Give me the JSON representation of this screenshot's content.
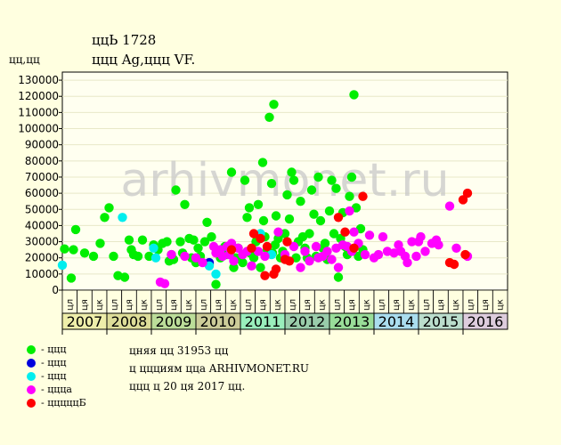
{
  "header": {
    "title_line1": "ццЬ 1728",
    "title_line2": "ццц Ag,ццц VF.",
    "ylabel": "цц,цц"
  },
  "watermark": "arhivmonet.ru",
  "notes": {
    "line1": "цняя цц 31953 цц",
    "line2": "ц ццциям ццa ARHIVMONET.RU",
    "line3": "ццц ц 20 ця 2017 цц."
  },
  "chart_data": {
    "type": "scatter",
    "ylim": [
      0,
      135000
    ],
    "yticks": [
      0,
      10000,
      20000,
      30000,
      40000,
      50000,
      60000,
      70000,
      80000,
      90000,
      100000,
      110000,
      120000,
      130000
    ],
    "quarter_labels": [
      "цл",
      "ця",
      "цк"
    ],
    "years": [
      {
        "label": "2007",
        "color": "#eeeeaa"
      },
      {
        "label": "2008",
        "color": "#dddd99"
      },
      {
        "label": "2009",
        "color": "#bbdd99"
      },
      {
        "label": "2010",
        "color": "#cccc99"
      },
      {
        "label": "2011",
        "color": "#99eebb"
      },
      {
        "label": "2012",
        "color": "#99ccaa"
      },
      {
        "label": "2013",
        "color": "#99dd99"
      },
      {
        "label": "2014",
        "color": "#aaddee"
      },
      {
        "label": "2015",
        "color": "#bbddcc"
      },
      {
        "label": "2016",
        "color": "#ddccdd"
      }
    ],
    "series": [
      {
        "name": "- ццц",
        "color": "#00ee00",
        "points": [
          [
            2007.05,
            25500
          ],
          [
            2007.2,
            7500
          ],
          [
            2007.3,
            37500
          ],
          [
            2007.25,
            25000
          ],
          [
            2007.5,
            23000
          ],
          [
            2007.7,
            21000
          ],
          [
            2007.85,
            29000
          ],
          [
            2007.95,
            45000
          ],
          [
            2008.05,
            51000
          ],
          [
            2008.15,
            21000
          ],
          [
            2008.25,
            9000
          ],
          [
            2008.4,
            8000
          ],
          [
            2008.5,
            31000
          ],
          [
            2008.55,
            25000
          ],
          [
            2008.6,
            22000
          ],
          [
            2008.7,
            21000
          ],
          [
            2008.8,
            31000
          ],
          [
            2008.95,
            21000
          ],
          [
            2009.05,
            28000
          ],
          [
            2009.15,
            25000
          ],
          [
            2009.25,
            29000
          ],
          [
            2009.35,
            30000
          ],
          [
            2009.4,
            18000
          ],
          [
            2009.45,
            22000
          ],
          [
            2009.5,
            19000
          ],
          [
            2009.55,
            62000
          ],
          [
            2009.65,
            30000
          ],
          [
            2009.7,
            23000
          ],
          [
            2009.75,
            53000
          ],
          [
            2009.85,
            32000
          ],
          [
            2009.9,
            20000
          ],
          [
            2009.95,
            31000
          ],
          [
            2010.0,
            17000
          ],
          [
            2010.05,
            26000
          ],
          [
            2010.1,
            21000
          ],
          [
            2010.2,
            30000
          ],
          [
            2010.25,
            42000
          ],
          [
            2010.3,
            16000
          ],
          [
            2010.35,
            33000
          ],
          [
            2010.45,
            3500
          ],
          [
            2010.55,
            20000
          ],
          [
            2010.65,
            27000
          ],
          [
            2010.7,
            22000
          ],
          [
            2010.8,
            73000
          ],
          [
            2010.85,
            14000
          ],
          [
            2010.9,
            20000
          ],
          [
            2010.95,
            26000
          ],
          [
            2011.0,
            19000
          ],
          [
            2011.05,
            17000
          ],
          [
            2011.1,
            68000
          ],
          [
            2011.15,
            45000
          ],
          [
            2011.2,
            51000
          ],
          [
            2011.22,
            23000
          ],
          [
            2011.3,
            20000
          ],
          [
            2011.35,
            30000
          ],
          [
            2011.4,
            53000
          ],
          [
            2011.45,
            14000
          ],
          [
            2011.5,
            79000
          ],
          [
            2011.52,
            43000
          ],
          [
            2011.55,
            33000
          ],
          [
            2011.6,
            25000
          ],
          [
            2011.65,
            107000
          ],
          [
            2011.7,
            66000
          ],
          [
            2011.72,
            23000
          ],
          [
            2011.75,
            115000
          ],
          [
            2011.78,
            28000
          ],
          [
            2011.8,
            46000
          ],
          [
            2011.85,
            32000
          ],
          [
            2011.9,
            20000
          ],
          [
            2011.95,
            24000
          ],
          [
            2012.0,
            35000
          ],
          [
            2012.05,
            59000
          ],
          [
            2012.1,
            44000
          ],
          [
            2012.15,
            73000
          ],
          [
            2012.2,
            68000
          ],
          [
            2012.25,
            20000
          ],
          [
            2012.3,
            30000
          ],
          [
            2012.35,
            55000
          ],
          [
            2012.4,
            33000
          ],
          [
            2012.45,
            26000
          ],
          [
            2012.5,
            20000
          ],
          [
            2012.55,
            35000
          ],
          [
            2012.6,
            62000
          ],
          [
            2012.65,
            47000
          ],
          [
            2012.7,
            21000
          ],
          [
            2012.75,
            70000
          ],
          [
            2012.8,
            43000
          ],
          [
            2012.85,
            26000
          ],
          [
            2012.9,
            29000
          ],
          [
            2012.95,
            19000
          ],
          [
            2013.0,
            49000
          ],
          [
            2013.05,
            68000
          ],
          [
            2013.1,
            35000
          ],
          [
            2013.15,
            63000
          ],
          [
            2013.2,
            8000
          ],
          [
            2013.25,
            32000
          ],
          [
            2013.3,
            48000
          ],
          [
            2013.35,
            27000
          ],
          [
            2013.4,
            22000
          ],
          [
            2013.45,
            58000
          ],
          [
            2013.5,
            70000
          ],
          [
            2013.55,
            121000
          ],
          [
            2013.6,
            51000
          ],
          [
            2013.65,
            21000
          ],
          [
            2013.7,
            38000
          ],
          [
            2013.75,
            25000
          ]
        ]
      },
      {
        "name": "- ццц",
        "color": "#0000dd",
        "points": [
          [
            2010.3,
            17000
          ]
        ]
      },
      {
        "name": "- ццц",
        "color": "#00eeee",
        "points": [
          [
            2007.0,
            15500
          ],
          [
            2008.35,
            45000
          ],
          [
            2009.05,
            26000
          ],
          [
            2009.1,
            20000
          ],
          [
            2010.3,
            15000
          ],
          [
            2010.45,
            10000
          ],
          [
            2011.45,
            35000
          ],
          [
            2011.7,
            22000
          ]
        ]
      },
      {
        "name": "- ццца",
        "color": "#ff00ff",
        "points": [
          [
            2009.2,
            5000
          ],
          [
            2009.3,
            4000
          ],
          [
            2009.45,
            22000
          ],
          [
            2009.75,
            21000
          ],
          [
            2010.0,
            20000
          ],
          [
            2010.15,
            17000
          ],
          [
            2010.4,
            27000
          ],
          [
            2010.45,
            23000
          ],
          [
            2010.55,
            25000
          ],
          [
            2010.6,
            21000
          ],
          [
            2010.7,
            27000
          ],
          [
            2010.75,
            22000
          ],
          [
            2010.8,
            29000
          ],
          [
            2010.85,
            18000
          ],
          [
            2010.95,
            26000
          ],
          [
            2011.05,
            22000
          ],
          [
            2011.15,
            24000
          ],
          [
            2011.25,
            15000
          ],
          [
            2011.4,
            24000
          ],
          [
            2011.55,
            21000
          ],
          [
            2011.85,
            36000
          ],
          [
            2012.0,
            22000
          ],
          [
            2012.2,
            27000
          ],
          [
            2012.35,
            14000
          ],
          [
            2012.45,
            24000
          ],
          [
            2012.55,
            18000
          ],
          [
            2012.7,
            27000
          ],
          [
            2012.75,
            20000
          ],
          [
            2012.85,
            21000
          ],
          [
            2012.95,
            24000
          ],
          [
            2013.05,
            19000
          ],
          [
            2013.15,
            26000
          ],
          [
            2013.2,
            14000
          ],
          [
            2013.3,
            28000
          ],
          [
            2013.4,
            27000
          ],
          [
            2013.45,
            49000
          ],
          [
            2013.5,
            24000
          ],
          [
            2013.55,
            36000
          ],
          [
            2013.65,
            29000
          ],
          [
            2013.8,
            22000
          ],
          [
            2013.9,
            34000
          ],
          [
            2014.0,
            20000
          ],
          [
            2014.1,
            22000
          ],
          [
            2014.2,
            33000
          ],
          [
            2014.3,
            24000
          ],
          [
            2014.45,
            23000
          ],
          [
            2014.55,
            28000
          ],
          [
            2014.6,
            24000
          ],
          [
            2014.7,
            21000
          ],
          [
            2014.75,
            17000
          ],
          [
            2014.85,
            30000
          ],
          [
            2014.95,
            21000
          ],
          [
            2015.0,
            30000
          ],
          [
            2015.05,
            33000
          ],
          [
            2015.15,
            24000
          ],
          [
            2015.3,
            29000
          ],
          [
            2015.4,
            31000
          ],
          [
            2015.45,
            28000
          ],
          [
            2015.7,
            52000
          ],
          [
            2015.85,
            26000
          ],
          [
            2016.1,
            21000
          ]
        ]
      },
      {
        "name": "- цццццБ",
        "color": "#ff0000",
        "points": [
          [
            2010.8,
            25000
          ],
          [
            2011.25,
            26000
          ],
          [
            2011.3,
            35000
          ],
          [
            2011.45,
            32000
          ],
          [
            2011.55,
            9000
          ],
          [
            2011.6,
            27000
          ],
          [
            2011.75,
            10000
          ],
          [
            2011.8,
            13000
          ],
          [
            2012.0,
            19000
          ],
          [
            2012.05,
            30000
          ],
          [
            2012.1,
            18000
          ],
          [
            2013.2,
            45000
          ],
          [
            2013.35,
            36000
          ],
          [
            2013.55,
            26000
          ],
          [
            2013.75,
            58000
          ],
          [
            2015.7,
            17000
          ],
          [
            2015.8,
            16000
          ],
          [
            2016.0,
            56000
          ],
          [
            2016.1,
            60000
          ],
          [
            2016.05,
            22000
          ]
        ]
      }
    ]
  }
}
